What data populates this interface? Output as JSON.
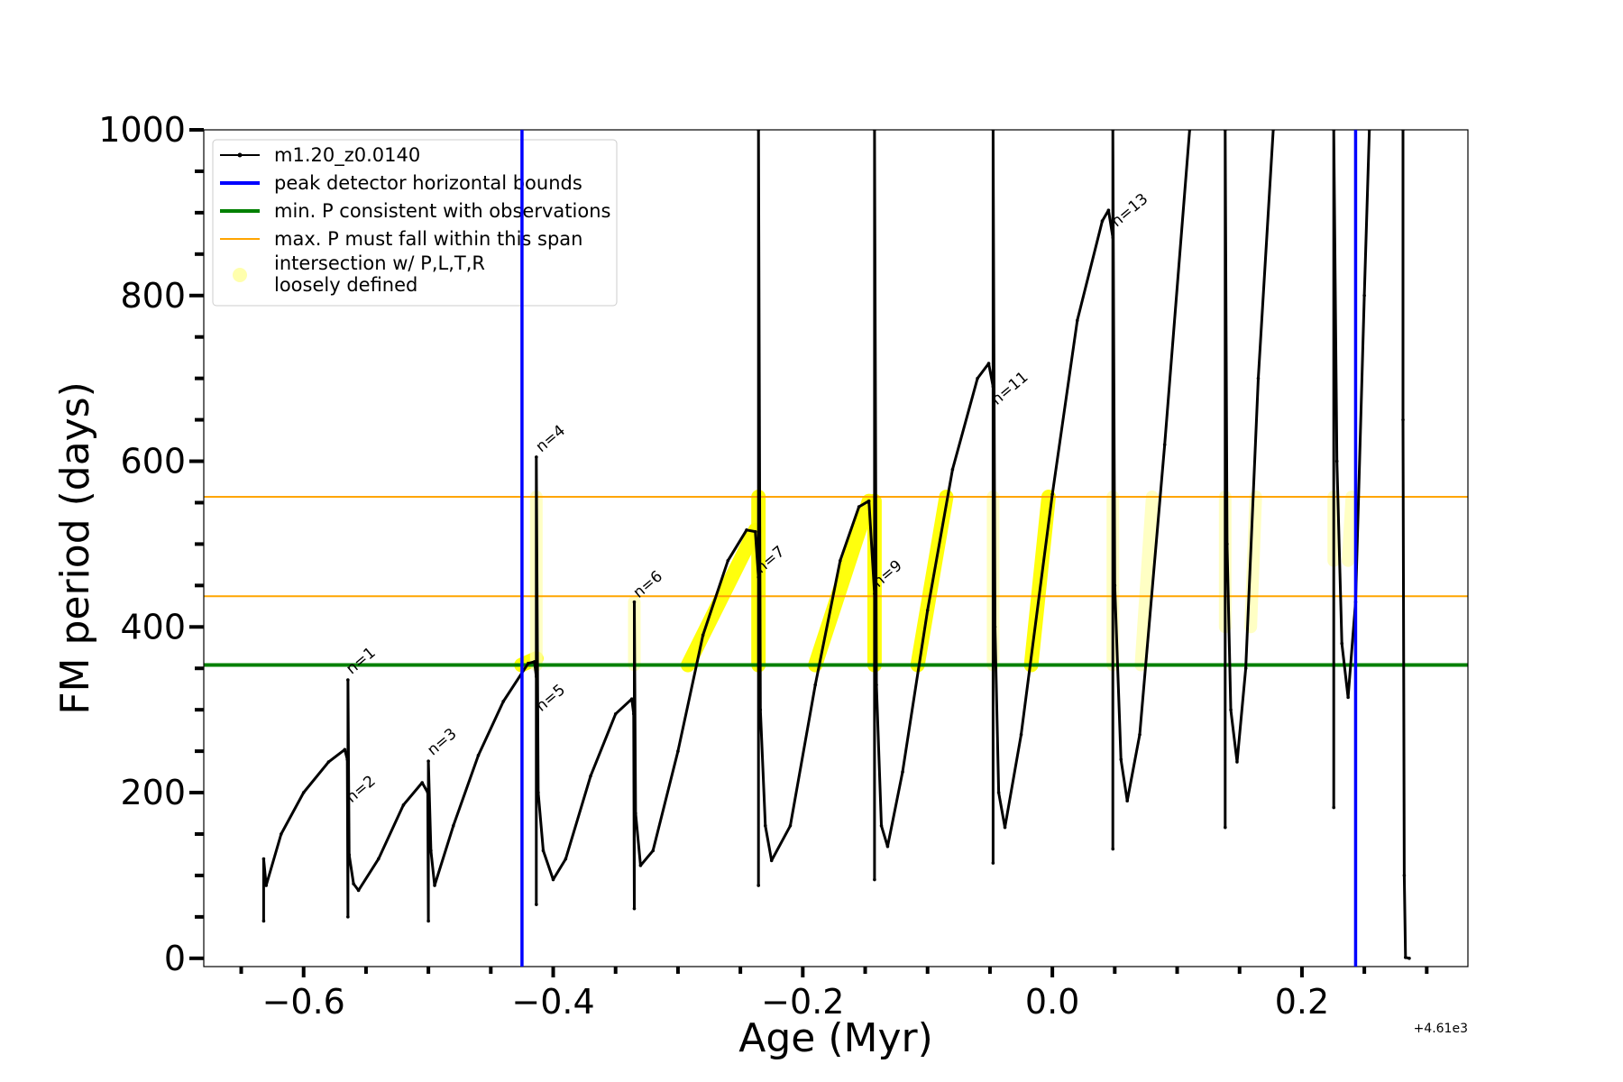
{
  "chart_data": {
    "type": "line",
    "xlabel": "Age (Myr)",
    "ylabel": "FM period (days)",
    "x_offset_label": "+4.61e3",
    "xlim": [
      -0.68,
      0.333
    ],
    "ylim": [
      -10,
      1000
    ],
    "xticks": [
      {
        "value": -0.6,
        "label": "−0.6"
      },
      {
        "value": -0.4,
        "label": "−0.4"
      },
      {
        "value": -0.2,
        "label": "−0.2"
      },
      {
        "value": 0.0,
        "label": "0.0"
      },
      {
        "value": 0.2,
        "label": "0.2"
      }
    ],
    "x_minor_ticks": [
      -0.65,
      -0.55,
      -0.5,
      -0.45,
      -0.35,
      -0.3,
      -0.25,
      -0.15,
      -0.1,
      -0.05,
      0.05,
      0.1,
      0.15,
      0.25,
      0.3
    ],
    "yticks": [
      {
        "value": 0,
        "label": "0"
      },
      {
        "value": 200,
        "label": "200"
      },
      {
        "value": 400,
        "label": "400"
      },
      {
        "value": 600,
        "label": "600"
      },
      {
        "value": 800,
        "label": "800"
      },
      {
        "value": 1000,
        "label": "1000"
      }
    ],
    "y_minor_ticks": [
      50,
      100,
      150,
      250,
      300,
      350,
      450,
      500,
      550,
      650,
      700,
      750,
      850,
      900,
      950
    ],
    "legend": {
      "placement": "upper-left",
      "entries": [
        {
          "label": "m1.20_z0.0140",
          "color": "#000000",
          "style": "line-marker"
        },
        {
          "label": "peak detector horizontal bounds",
          "color": "#0000ff",
          "style": "thick-line"
        },
        {
          "label": "min. P consistent with observations",
          "color": "#008000",
          "style": "thick-line"
        },
        {
          "label": "max. P must fall within this span",
          "color": "#ffa500",
          "style": "thin-line"
        },
        {
          "label": "intersection w/ P,L,T,R",
          "label2": "loosely defined",
          "color": "#ffff99",
          "style": "marker"
        }
      ]
    },
    "vertical_lines": [
      {
        "x": -0.425,
        "color": "#0000ff"
      },
      {
        "x": 0.243,
        "color": "#0000ff"
      }
    ],
    "horizontal_lines": [
      {
        "y": 354,
        "color": "#008000",
        "name": "min. P"
      },
      {
        "y": 557,
        "color": "#ffa500",
        "name": "max. P upper"
      },
      {
        "y": 437,
        "color": "#ffa500",
        "name": "max. P lower"
      }
    ],
    "series": [
      {
        "name": "m1.20_z0.0140",
        "color": "#000000",
        "segments": [
          [
            [
              -0.632,
              45
            ],
            [
              -0.632,
              120
            ],
            [
              -0.63,
              88
            ],
            [
              -0.618,
              150
            ],
            [
              -0.6,
              200
            ],
            [
              -0.58,
              237
            ],
            [
              -0.567,
              252
            ],
            [
              -0.565,
              240
            ],
            [
              -0.5645,
              50
            ],
            [
              -0.5645,
              336
            ],
            [
              -0.5635,
              125
            ],
            [
              -0.56,
              90
            ],
            [
              -0.556,
              82
            ],
            [
              -0.54,
              120
            ],
            [
              -0.52,
              185
            ],
            [
              -0.505,
              212
            ],
            [
              -0.5005,
              200
            ],
            [
              -0.5,
              45
            ],
            [
              -0.5,
              238
            ],
            [
              -0.498,
              130
            ],
            [
              -0.495,
              88
            ],
            [
              -0.48,
              160
            ],
            [
              -0.46,
              245
            ],
            [
              -0.44,
              310
            ],
            [
              -0.42,
              356
            ],
            [
              -0.415,
              358
            ],
            [
              -0.4135,
              340
            ],
            [
              -0.4135,
              65
            ],
            [
              -0.4135,
              605
            ],
            [
              -0.412,
              200
            ],
            [
              -0.408,
              130
            ],
            [
              -0.4,
              95
            ],
            [
              -0.39,
              120
            ],
            [
              -0.37,
              220
            ],
            [
              -0.35,
              295
            ],
            [
              -0.337,
              313
            ],
            [
              -0.3355,
              295
            ],
            [
              -0.335,
              60
            ],
            [
              -0.335,
              430
            ],
            [
              -0.334,
              175
            ],
            [
              -0.33,
              112
            ],
            [
              -0.32,
              130
            ],
            [
              -0.3,
              250
            ],
            [
              -0.28,
              390
            ],
            [
              -0.26,
              480
            ],
            [
              -0.245,
              517
            ],
            [
              -0.238,
              515
            ],
            [
              -0.2355,
              460
            ],
            [
              -0.2355,
              88
            ],
            [
              -0.2355,
              1000
            ],
            [
              -0.234,
              300
            ],
            [
              -0.23,
              160
            ],
            [
              -0.225,
              118
            ],
            [
              -0.21,
              160
            ],
            [
              -0.19,
              330
            ],
            [
              -0.17,
              480
            ],
            [
              -0.155,
              545
            ],
            [
              -0.147,
              552
            ],
            [
              -0.1425,
              440
            ],
            [
              -0.1425,
              95
            ],
            [
              -0.1425,
              1000
            ],
            [
              -0.141,
              330
            ],
            [
              -0.137,
              160
            ],
            [
              -0.132,
              135
            ],
            [
              -0.12,
              225
            ],
            [
              -0.1,
              420
            ],
            [
              -0.08,
              590
            ],
            [
              -0.06,
              700
            ],
            [
              -0.051,
              718
            ],
            [
              -0.0475,
              690
            ],
            [
              -0.0475,
              115
            ],
            [
              -0.0475,
              1000
            ],
            [
              -0.046,
              400
            ],
            [
              -0.043,
              200
            ],
            [
              -0.038,
              158
            ],
            [
              -0.025,
              270
            ],
            [
              0.0,
              560
            ],
            [
              0.02,
              770
            ],
            [
              0.04,
              890
            ],
            [
              0.045,
              903
            ],
            [
              0.0485,
              870
            ],
            [
              0.0485,
              132
            ],
            [
              0.0485,
              1000
            ],
            [
              0.05,
              450
            ],
            [
              0.055,
              240
            ],
            [
              0.06,
              190
            ],
            [
              0.07,
              270
            ],
            [
              0.09,
              620
            ],
            [
              0.11,
              1000
            ]
          ],
          [
            [
              0.1385,
              1000
            ],
            [
              0.1385,
              158
            ],
            [
              0.1385,
              1000
            ],
            [
              0.14,
              500
            ],
            [
              0.143,
              300
            ],
            [
              0.148,
              237
            ],
            [
              0.155,
              350
            ],
            [
              0.165,
              700
            ],
            [
              0.177,
              1000
            ]
          ],
          [
            [
              0.2255,
              1000
            ],
            [
              0.2255,
              182
            ],
            [
              0.2255,
              1000
            ],
            [
              0.228,
              600
            ],
            [
              0.232,
              380
            ],
            [
              0.237,
              315
            ],
            [
              0.243,
              430
            ],
            [
              0.25,
              800
            ],
            [
              0.254,
              1000
            ]
          ],
          [
            [
              0.281,
              1000
            ],
            [
              0.281,
              650
            ],
            [
              0.282,
              100
            ],
            [
              0.283,
              1
            ],
            [
              0.286,
              0
            ]
          ]
        ]
      }
    ],
    "highlights": [
      {
        "x0": -0.4255,
        "x1": -0.4135,
        "y0": 354,
        "y1": 362,
        "intensity": "bright"
      },
      {
        "x0": -0.4135,
        "x1": -0.4135,
        "y0": 354,
        "y1": 557,
        "intensity": "faint"
      },
      {
        "x0": -0.335,
        "x1": -0.335,
        "y0": 354,
        "y1": 430,
        "intensity": "faint"
      },
      {
        "x0": -0.292,
        "x1": -0.238,
        "y0": 354,
        "y1": 517,
        "intensity": "bright"
      },
      {
        "x0": -0.2355,
        "x1": -0.2355,
        "y0": 354,
        "y1": 557,
        "intensity": "bright"
      },
      {
        "x0": -0.19,
        "x1": -0.147,
        "y0": 354,
        "y1": 552,
        "intensity": "bright"
      },
      {
        "x0": -0.1425,
        "x1": -0.1425,
        "y0": 354,
        "y1": 552,
        "intensity": "bright"
      },
      {
        "x0": -0.108,
        "x1": -0.085,
        "y0": 354,
        "y1": 557,
        "intensity": "bright"
      },
      {
        "x0": -0.0475,
        "x1": -0.0475,
        "y0": 354,
        "y1": 557,
        "intensity": "faint"
      },
      {
        "x0": -0.017,
        "x1": -0.003,
        "y0": 354,
        "y1": 557,
        "intensity": "bright"
      },
      {
        "x0": 0.0485,
        "x1": 0.0485,
        "y0": 354,
        "y1": 557,
        "intensity": "faint"
      },
      {
        "x0": 0.071,
        "x1": 0.08,
        "y0": 354,
        "y1": 557,
        "intensity": "faint"
      },
      {
        "x0": 0.1385,
        "x1": 0.1385,
        "y0": 400,
        "y1": 557,
        "intensity": "faint"
      },
      {
        "x0": 0.159,
        "x1": 0.163,
        "y0": 400,
        "y1": 557,
        "intensity": "faint"
      },
      {
        "x0": 0.2255,
        "x1": 0.2255,
        "y0": 480,
        "y1": 557,
        "intensity": "faint"
      },
      {
        "x0": 0.237,
        "x1": 0.24,
        "y0": 480,
        "y1": 557,
        "intensity": "faint"
      }
    ],
    "annotations": [
      {
        "text": "n=1",
        "x": -0.563,
        "y": 340
      },
      {
        "text": "n=2",
        "x": -0.563,
        "y": 185
      },
      {
        "text": "n=3",
        "x": -0.498,
        "y": 242
      },
      {
        "text": "n=4",
        "x": -0.411,
        "y": 608
      },
      {
        "text": "n=5",
        "x": -0.411,
        "y": 295
      },
      {
        "text": "n=6",
        "x": -0.333,
        "y": 432
      },
      {
        "text": "n=7",
        "x": -0.235,
        "y": 462
      },
      {
        "text": "n=9",
        "x": -0.141,
        "y": 445
      },
      {
        "text": "n=11",
        "x": -0.046,
        "y": 665
      },
      {
        "text": "n=13",
        "x": 0.05,
        "y": 880
      }
    ]
  }
}
